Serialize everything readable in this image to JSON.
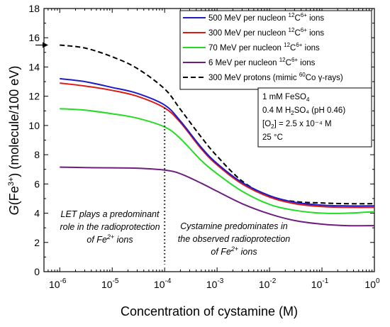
{
  "chart_data": {
    "type": "line",
    "xlabel": "Concentration of cystamine (M)",
    "ylabel_parts": {
      "pre": "G",
      "mid": "(Fe",
      "sup": "3+",
      "post": ") (molecule/100 eV)"
    },
    "x_scale": "log",
    "xlim": [
      5e-07,
      1
    ],
    "ylim": [
      0,
      18
    ],
    "x_ticks": [
      {
        "value": 1e-06,
        "base": "10",
        "exp": "-6"
      },
      {
        "value": 1e-05,
        "base": "10",
        "exp": "-5"
      },
      {
        "value": 0.0001,
        "base": "10",
        "exp": "-4"
      },
      {
        "value": 0.001,
        "base": "10",
        "exp": "-3"
      },
      {
        "value": 0.01,
        "base": "10",
        "exp": "-2"
      },
      {
        "value": 0.1,
        "base": "10",
        "exp": "-1"
      },
      {
        "value": 1,
        "base": "10",
        "exp": "0"
      }
    ],
    "y_ticks": [
      0,
      2,
      4,
      6,
      8,
      10,
      12,
      14,
      16,
      18
    ],
    "arrow_marker_y": 15.5,
    "vertical_marker_x": 0.0001,
    "vertical_marker_top": 11.2,
    "legend_position": "top-right",
    "series": [
      {
        "name_parts": {
          "pre": "500 MeV per nucleon ",
          "sup1": "12",
          "mid": "C",
          "sup2": "6+",
          "post": " ions"
        },
        "color": "#1c1cc8",
        "dash": "solid",
        "x": [
          1e-06,
          3e-06,
          1e-05,
          3e-05,
          0.0001,
          0.0002,
          0.0005,
          0.001,
          0.003,
          0.01,
          0.03,
          0.1,
          0.3,
          1
        ],
        "y": [
          13.2,
          13.0,
          12.6,
          12.2,
          11.4,
          10.3,
          8.5,
          7.4,
          6.1,
          5.2,
          4.75,
          4.55,
          4.5,
          4.5
        ]
      },
      {
        "name_parts": {
          "pre": "300 MeV per nucleon ",
          "sup1": "12",
          "mid": "C",
          "sup2": "6+",
          "post": " ions"
        },
        "color": "#e01818",
        "dash": "solid",
        "x": [
          1e-06,
          3e-06,
          1e-05,
          3e-05,
          0.0001,
          0.0002,
          0.0005,
          0.001,
          0.003,
          0.01,
          0.03,
          0.1,
          0.3,
          1
        ],
        "y": [
          12.9,
          12.7,
          12.4,
          12.0,
          11.2,
          10.2,
          8.4,
          7.3,
          6.0,
          5.1,
          4.65,
          4.45,
          4.4,
          4.4
        ]
      },
      {
        "name_parts": {
          "pre": "70 MeV per nucleon ",
          "sup1": "12",
          "mid": "C",
          "sup2": "6+",
          "post": " ions"
        },
        "color": "#22dd22",
        "dash": "solid",
        "x": [
          1e-06,
          3e-06,
          1e-05,
          3e-05,
          0.0001,
          0.0002,
          0.0005,
          0.001,
          0.003,
          0.01,
          0.03,
          0.1,
          0.3,
          1
        ],
        "y": [
          11.15,
          11.05,
          10.8,
          10.5,
          9.9,
          9.1,
          7.6,
          6.7,
          5.5,
          4.6,
          4.2,
          4.0,
          4.0,
          4.1
        ]
      },
      {
        "name_parts": {
          "pre": "6 MeV per nucleon ",
          "sup1": "12",
          "mid": "C",
          "sup2": "6+",
          "post": " ions"
        },
        "color": "#6e1e82",
        "dash": "solid",
        "x": [
          1e-06,
          3e-06,
          1e-05,
          3e-05,
          0.0001,
          0.0002,
          0.0005,
          0.001,
          0.003,
          0.01,
          0.03,
          0.1,
          0.3,
          1
        ],
        "y": [
          7.15,
          7.12,
          7.1,
          7.08,
          6.95,
          6.7,
          6.05,
          5.5,
          4.65,
          3.95,
          3.5,
          3.25,
          3.15,
          3.15
        ]
      },
      {
        "name_parts": {
          "pre": "300 MeV protons (mimic ",
          "sup1": "60",
          "mid": "Co γ-rays)",
          "sup2": "",
          "post": ""
        },
        "color": "#000000",
        "dash": "dashed",
        "x": [
          1e-06,
          3e-06,
          1e-05,
          3e-05,
          0.0001,
          0.0002,
          0.0005,
          0.001,
          0.003,
          0.01,
          0.03,
          0.1,
          0.3,
          1
        ],
        "y": [
          15.5,
          15.3,
          14.7,
          13.9,
          12.5,
          11.1,
          9.2,
          7.9,
          6.2,
          5.15,
          4.8,
          4.7,
          4.65,
          4.65
        ]
      }
    ],
    "conditions_box": [
      {
        "pre": "1 mM FeSO",
        "sub": "4",
        "sup": "",
        "post": ""
      },
      {
        "pre": "0.4 M H",
        "sub": "2",
        "sup": "",
        "post": "SO₄ (pH 0.46)"
      },
      {
        "pre": "[O",
        "sub": "2",
        "sup": "",
        "post": "] = 2.5 x 10⁻⁴ M"
      },
      {
        "pre": "25 °C",
        "sub": "",
        "sup": "",
        "post": ""
      }
    ],
    "annotations": {
      "left": [
        {
          "pre": "LET plays a predominant",
          "sup": "",
          "post": ""
        },
        {
          "pre": "role in the radioprotection",
          "sup": "",
          "post": ""
        },
        {
          "pre": "of Fe",
          "sup": "2+",
          "post": " ions"
        }
      ],
      "right": [
        {
          "pre": "Cystamine predominates in",
          "sup": "",
          "post": ""
        },
        {
          "pre": "the observed radioprotection",
          "sup": "",
          "post": ""
        },
        {
          "pre": "of Fe",
          "sup": "2+",
          "post": " ions"
        }
      ]
    }
  }
}
